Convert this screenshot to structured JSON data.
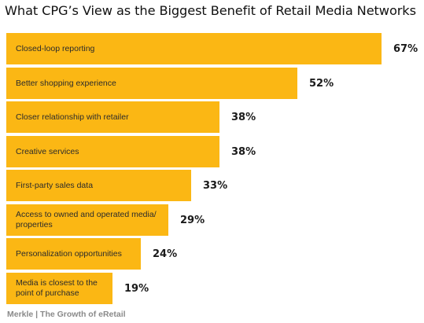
{
  "chart_data": {
    "type": "bar",
    "orientation": "horizontal",
    "title": "What CPG’s View as the Biggest Benefit of Retail Media Networks",
    "categories": [
      "Closed-loop reporting",
      "Better shopping experience",
      "Closer relationship with retailer",
      "Creative services",
      "First-party sales data",
      "Access to owned and operated media/ properties",
      "Personalization opportunities",
      "Media is closest to the point of purchase"
    ],
    "values": [
      67,
      52,
      38,
      38,
      33,
      29,
      24,
      19
    ],
    "value_labels": [
      "67%",
      "52%",
      "38%",
      "38%",
      "33%",
      "29%",
      "24%",
      "19%"
    ],
    "unit": "%",
    "xlim": [
      0,
      67
    ],
    "grid": false,
    "legend": "none",
    "bar_color": "#FBB714",
    "source": "Merkle | The Growth of eRetail"
  }
}
